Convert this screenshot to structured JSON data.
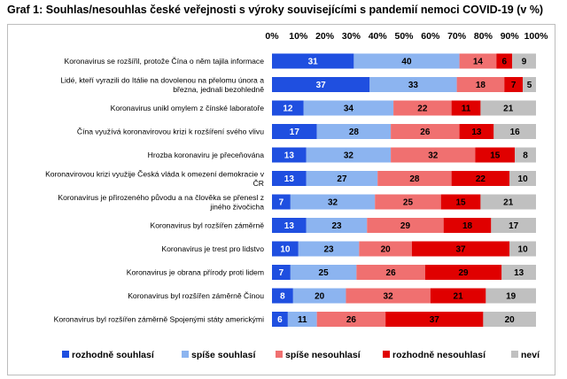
{
  "title": "Graf 1: Souhlas/nesouhlas české veřejnosti s výroky souvisejícími s pandemií nemoci COVID-19 (v %)",
  "colors": {
    "rozhodne_souhlasi": "#1f4fe0",
    "spise_souhlasi": "#8cb4f0",
    "spise_nesouhlasi": "#f07070",
    "rozhodne_nesouhlasi": "#e00000",
    "nevi": "#c0c0c0"
  },
  "chart_data": {
    "type": "bar",
    "orientation": "horizontal",
    "stacked": true,
    "xlim": [
      0,
      100
    ],
    "ticks": [
      "0%",
      "10%",
      "20%",
      "30%",
      "40%",
      "50%",
      "60%",
      "70%",
      "80%",
      "90%",
      "100%"
    ],
    "grid": false,
    "legend_position": "bottom",
    "categories": [
      [
        "Koronavirus se rozšířil, protože Čína o něm tajila informace"
      ],
      [
        "Lidé, kteří vyrazili do Itálie na dovolenou na přelomu února a",
        "března, jednali bezohledně"
      ],
      [
        "Koronavirus unikl omylem z čínské laboratoře"
      ],
      [
        "Čína využívá koronavirovou krizi k rozšíření svého vlivu"
      ],
      [
        "Hrozba koronaviru je přeceňována"
      ],
      [
        "Koronavirovou krizi využije Česká vláda k omezení demokracie v",
        "ČR"
      ],
      [
        "Koronavirus je přirozeného původu a na člověka se přenesl z",
        "jiného živočicha"
      ],
      [
        "Koronavirus byl rozšířen záměrně"
      ],
      [
        "Koronavirus je trest pro lidstvo"
      ],
      [
        "Koronavirus je obrana přírody proti lidem"
      ],
      [
        "Koronavirus byl rozšířen záměrně Čínou"
      ],
      [
        "Koronavirus byl rozšířen záměrně Spojenými státy americkými"
      ]
    ],
    "series": [
      {
        "name": "rozhodně souhlasí",
        "values": [
          31,
          37,
          12,
          17,
          13,
          13,
          7,
          13,
          10,
          7,
          8,
          6
        ]
      },
      {
        "name": "spíše souhlasí",
        "values": [
          40,
          33,
          34,
          28,
          32,
          27,
          32,
          23,
          23,
          25,
          20,
          11
        ]
      },
      {
        "name": "spíše nesouhlasí",
        "values": [
          14,
          18,
          22,
          26,
          32,
          28,
          25,
          29,
          20,
          26,
          32,
          26
        ]
      },
      {
        "name": "rozhodně nesouhlasí",
        "values": [
          6,
          7,
          11,
          13,
          15,
          22,
          15,
          18,
          37,
          29,
          21,
          37
        ]
      },
      {
        "name": "neví",
        "values": [
          9,
          5,
          21,
          16,
          8,
          10,
          21,
          17,
          10,
          13,
          19,
          20
        ]
      }
    ]
  }
}
